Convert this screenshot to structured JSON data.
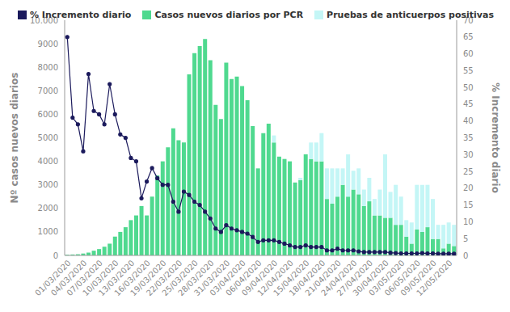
{
  "chart_data": {
    "type": "bar",
    "stacked": true,
    "grid": false,
    "legend": "top-left",
    "categories": [
      "01/03/2020",
      null,
      null,
      "04/03/2020",
      null,
      null,
      "07/03/2020",
      null,
      null,
      "10/03/2020",
      null,
      null,
      "13/03/2020",
      null,
      null,
      "16/03/2020",
      null,
      null,
      "19/03/2020",
      null,
      null,
      "22/03/2020",
      null,
      null,
      "25/03/2020",
      null,
      null,
      "28/03/2020",
      null,
      null,
      "31/03/2020",
      null,
      null,
      "03/04/2020",
      null,
      null,
      "06/04/2020",
      null,
      null,
      "09/04/2020",
      null,
      null,
      "12/04/2020",
      null,
      null,
      "15/04/2020",
      null,
      null,
      "18/04/2020",
      null,
      null,
      "21/04/2020",
      null,
      null,
      "24/04/2020",
      null,
      null,
      "27/04/2020",
      null,
      null,
      "30/04/2020",
      null,
      null,
      "03/05/2020",
      null,
      null,
      "06/05/2020",
      null,
      null,
      "09/05/2020",
      null,
      null,
      "12/05/2020",
      null
    ],
    "y_label": "Nº casos nuevos diarios",
    "y2_label": "% Incremento diario",
    "ylim": [
      0,
      10000
    ],
    "yticks": [
      0,
      1000,
      2000,
      3000,
      4000,
      5000,
      6000,
      7000,
      8000,
      9000,
      {
        "value": 10000,
        "label": "10.000"
      }
    ],
    "y2lim": [
      0,
      70
    ],
    "y2ticks": [
      0,
      5,
      10,
      15,
      20,
      25,
      30,
      35,
      40,
      45,
      50,
      55,
      60,
      65,
      70
    ],
    "series": [
      {
        "name": "% Incremento diario",
        "type": "line",
        "axis": "y2",
        "color": "#1b1a5c",
        "marker": "circle",
        "values": [
          65,
          41,
          39,
          31,
          54,
          43,
          42,
          39,
          51,
          42,
          36,
          35,
          29,
          28,
          17,
          22,
          26,
          23,
          21,
          21,
          16,
          13,
          19,
          18,
          16,
          15,
          13,
          11,
          8,
          7,
          9,
          8,
          7.5,
          7,
          6.5,
          5.5,
          4,
          4.5,
          4.5,
          4.5,
          4,
          3.5,
          3,
          2.5,
          2.5,
          3,
          2.5,
          2.5,
          2.5,
          1.5,
          1.5,
          2,
          1.5,
          1.5,
          1.5,
          1.2,
          1,
          1,
          1,
          1,
          1,
          0.8,
          0.7,
          0.6,
          0.6,
          0.6,
          0.6,
          0.7,
          0.6,
          0.6,
          0.5,
          0.5,
          0.5,
          0.5
        ]
      },
      {
        "name": "Casos nuevos diarios por PCR",
        "type": "bar",
        "color": "#4fd98f",
        "values": [
          30,
          40,
          50,
          80,
          120,
          200,
          270,
          370,
          500,
          800,
          1000,
          1200,
          1500,
          1700,
          2100,
          1700,
          2500,
          3400,
          4000,
          4600,
          5400,
          4900,
          4800,
          7700,
          8600,
          8900,
          9200,
          8300,
          6400,
          5800,
          8200,
          7500,
          7600,
          7200,
          6600,
          5500,
          3700,
          5200,
          5600,
          4800,
          4200,
          4100,
          4000,
          3100,
          3200,
          4300,
          4100,
          4000,
          4000,
          2400,
          2200,
          2500,
          3000,
          2500,
          2800,
          2600,
          2100,
          2300,
          1700,
          1700,
          1600,
          1600,
          1300,
          1300,
          800,
          500,
          1100,
          1000,
          1200,
          700,
          700,
          300,
          500,
          400
        ]
      },
      {
        "name": "Pruebas de anticuerpos positivas",
        "type": "bar",
        "color": "#c4f6f6",
        "values": [
          0,
          0,
          0,
          0,
          0,
          0,
          0,
          0,
          0,
          0,
          0,
          0,
          0,
          0,
          0,
          0,
          0,
          0,
          0,
          0,
          0,
          0,
          0,
          0,
          0,
          0,
          0,
          0,
          0,
          0,
          0,
          0,
          0,
          0,
          0,
          0,
          0,
          0,
          0,
          300,
          0,
          0,
          0,
          0,
          100,
          0,
          700,
          800,
          1200,
          1300,
          1500,
          1200,
          700,
          1800,
          800,
          1100,
          700,
          1000,
          700,
          1100,
          2700,
          1100,
          1700,
          1200,
          700,
          900,
          1900,
          2000,
          1800,
          1700,
          600,
          1000,
          900,
          900
        ]
      }
    ]
  }
}
